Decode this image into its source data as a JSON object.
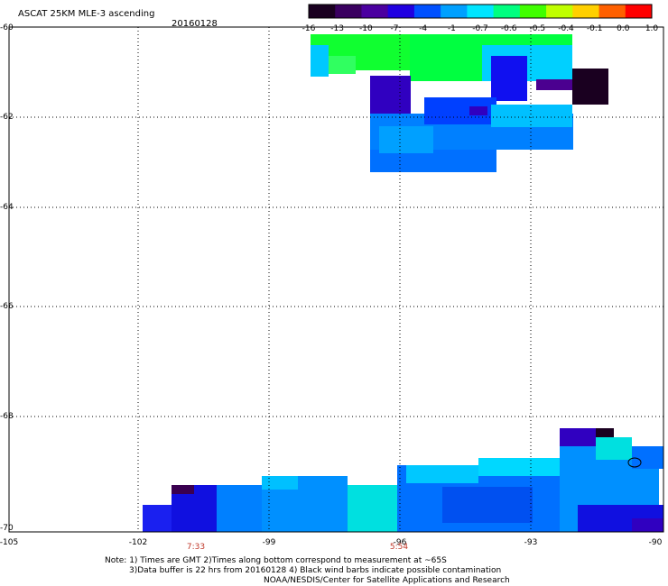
{
  "title": "ASCAT 25KM MLE-3 ascending",
  "date": "20160128",
  "lat_labels": [
    "-60",
    "-62",
    "-64",
    "-66",
    "-68",
    "-70"
  ],
  "lon_labels": [
    "-105",
    "-102",
    "-99",
    "-96",
    "-93",
    "-90"
  ],
  "time_labels": [
    "7:33",
    "5:54"
  ],
  "colorbar": {
    "labels": [
      "-16",
      "-13",
      "-10",
      "-7",
      "-4",
      "-1",
      "-0.7",
      "-0.6",
      "-0.5",
      "-0.4",
      "-0.1",
      "0.0",
      "1.0"
    ],
    "colors": [
      "#1a0020",
      "#3a0060",
      "#4b00a0",
      "#2000e0",
      "#0050ff",
      "#00a0ff",
      "#00e5ff",
      "#00ff80",
      "#40ff00",
      "#c0ff00",
      "#ffd000",
      "#ff6000",
      "#ff0000"
    ]
  },
  "notes": {
    "line1": "Note: 1) Times are GMT 2)Times along bottom correspond to measurement at ~65S",
    "line2": "3)Data buffer is 22 hrs from 20160128 4) Black wind barbs indicate possible contamination",
    "line3": "NOAA/NESDIS/Center for Satellite Applications and Research"
  }
}
